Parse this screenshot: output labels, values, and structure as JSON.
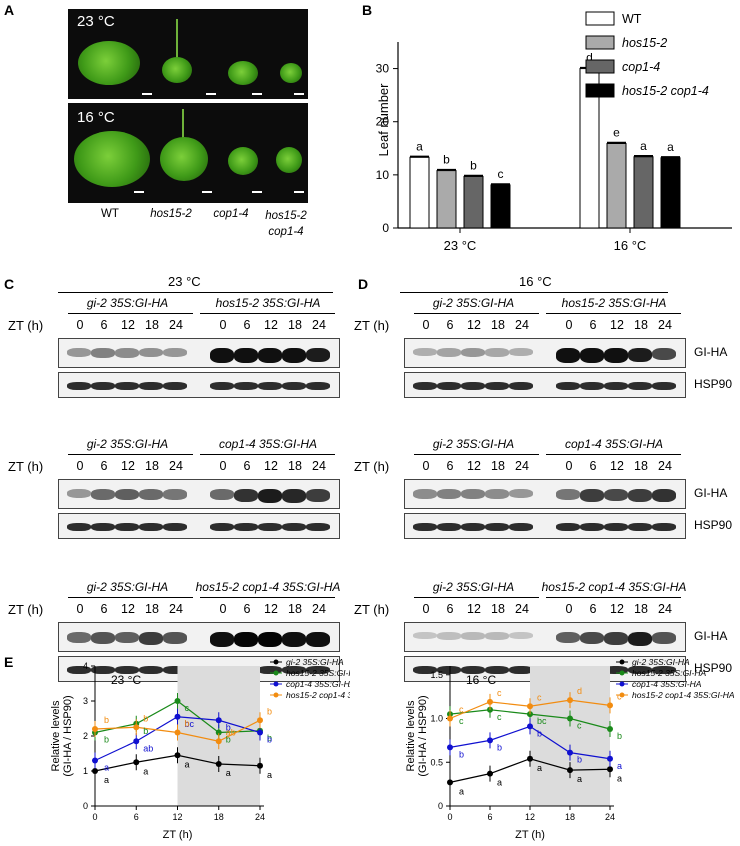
{
  "panels": {
    "a": "A",
    "b": "B",
    "c": "C",
    "d": "D",
    "e": "E"
  },
  "panelA": {
    "temp_23": "23 °C",
    "temp_16": "16 °C",
    "genotypes": [
      "WT",
      "hos15-2",
      "cop1-4",
      "hos15-2\ncop1-4"
    ]
  },
  "panelB": {
    "ylabel": "Leaf number",
    "yticks": [
      "0",
      "10",
      "20",
      "30"
    ],
    "groups": [
      "23 °C",
      "16 °C"
    ],
    "legend": [
      "WT",
      "hos15-2",
      "cop1-4",
      "hos15-2 cop1-4"
    ],
    "legend_colors": [
      "#ffffff",
      "#aaaaaa",
      "#666666",
      "#000000"
    ]
  },
  "chart_b": {
    "type": "bar",
    "categories": [
      "23 °C",
      "16 °C"
    ],
    "series": [
      {
        "name": "WT",
        "values": [
          13.3,
          30.0
        ],
        "letters": [
          "a",
          "d"
        ]
      },
      {
        "name": "hos15-2",
        "values": [
          10.8,
          15.9
        ],
        "letters": [
          "b",
          "e"
        ]
      },
      {
        "name": "cop1-4",
        "values": [
          9.7,
          13.4
        ],
        "letters": [
          "b",
          "a"
        ]
      },
      {
        "name": "hos15-2 cop1-4",
        "values": [
          8.1,
          13.2
        ],
        "letters": [
          "c",
          "a"
        ]
      }
    ],
    "ylabel": "Leaf number",
    "ylim": [
      0,
      35
    ]
  },
  "blots": {
    "c_title": "23 °C",
    "d_title": "16 °C",
    "zt_label": "ZT (h)",
    "zt_ticks": [
      "0",
      "6",
      "12",
      "18",
      "24"
    ],
    "gi_label": "GI-HA",
    "hsp_label": "HSP90",
    "ctrl": "gi-2 35S:GI-HA",
    "row1_line": "hos15-2 35S:GI-HA",
    "row2_line": "cop1-4 35S:GI-HA",
    "row3_line": "hos15-2 cop1-4 35S:GI-HA"
  },
  "panelE": {
    "ylabel_line1": "Relative levels",
    "ylabel_line2": "(GI-HA / HSP90)",
    "xlabel": "ZT (h)",
    "xticks": [
      "0",
      "6",
      "12",
      "18",
      "24"
    ],
    "left_title": "23 °C",
    "right_title": "16 °C",
    "left_yticks": [
      "0",
      "1",
      "2",
      "3",
      "4"
    ],
    "right_yticks": [
      "0",
      "0.5",
      "1.0",
      "1.5"
    ],
    "legend": [
      "gi-2 35S:GI-HA",
      "hos15-2 35S:GI-HA",
      "cop1-4 35S:GI-HA",
      "hos15-2 cop1-4 35S:GI-HA"
    ],
    "colors": [
      "#000000",
      "#1a8a1a",
      "#1010d0",
      "#f28c10"
    ]
  },
  "chart_data": [
    {
      "type": "line",
      "title": "23 °C",
      "x": [
        0,
        6,
        12,
        18,
        24
      ],
      "xlabel": "ZT (h)",
      "ylabel": "Relative levels (GI-HA / HSP90)",
      "ylim": [
        0,
        4
      ],
      "series": [
        {
          "name": "gi-2 35S:GI-HA",
          "values": [
            1.0,
            1.25,
            1.45,
            1.2,
            1.15
          ],
          "letters": [
            "a",
            "a",
            "a",
            "a",
            "a"
          ]
        },
        {
          "name": "hos15-2 35S:GI-HA",
          "values": [
            2.1,
            2.35,
            3.0,
            2.1,
            2.15
          ],
          "letters": [
            "b",
            "b",
            "c",
            "b",
            "b"
          ]
        },
        {
          "name": "cop1-4 35S:GI-HA",
          "values": [
            1.3,
            1.85,
            2.55,
            2.45,
            2.1
          ],
          "letters": [
            "a",
            "ab",
            "bc",
            "b",
            "b"
          ]
        },
        {
          "name": "hos15-2 cop1-4 35S:GI-HA",
          "values": [
            2.2,
            2.25,
            2.1,
            1.85,
            2.45
          ],
          "letters": [
            "b",
            "b",
            "b",
            "ab",
            "b"
          ]
        }
      ]
    },
    {
      "type": "line",
      "title": "16 °C",
      "x": [
        0,
        6,
        12,
        18,
        24
      ],
      "xlabel": "ZT (h)",
      "ylabel": "Relative levels (GI-HA / HSP90)",
      "ylim": [
        0,
        1.6
      ],
      "series": [
        {
          "name": "gi-2 35S:GI-HA",
          "values": [
            0.27,
            0.37,
            0.54,
            0.41,
            0.42
          ],
          "letters": [
            "a",
            "a",
            "a",
            "a",
            "a"
          ]
        },
        {
          "name": "hos15-2 35S:GI-HA",
          "values": [
            1.05,
            1.1,
            1.05,
            1.0,
            0.88
          ],
          "letters": [
            "c",
            "c",
            "bc",
            "c",
            "b"
          ]
        },
        {
          "name": "cop1-4 35S:GI-HA",
          "values": [
            0.67,
            0.75,
            0.91,
            0.61,
            0.54
          ],
          "letters": [
            "b",
            "b",
            "b",
            "b",
            "a"
          ]
        },
        {
          "name": "hos15-2 cop1-4 35S:GI-HA",
          "values": [
            1.0,
            1.19,
            1.14,
            1.21,
            1.15
          ],
          "letters": [
            "c",
            "c",
            "c",
            "d",
            "c"
          ]
        }
      ]
    }
  ]
}
